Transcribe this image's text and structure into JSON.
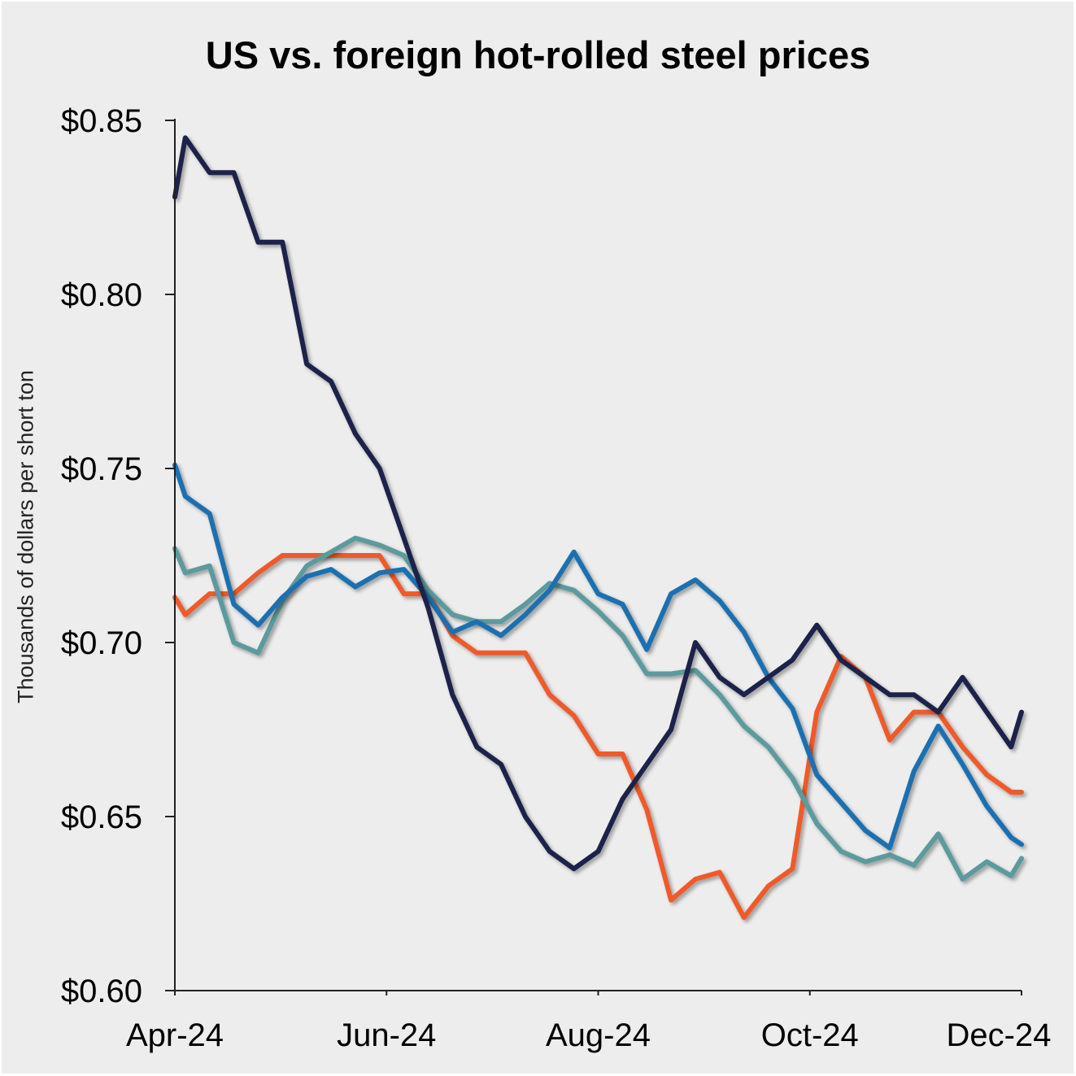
{
  "chart_data": {
    "type": "line",
    "title": "US vs. foreign hot-rolled steel prices",
    "xlabel": "",
    "ylabel": "Thousands of dollars per short ton",
    "y_tick_labels": [
      "$0.60",
      "$0.65",
      "$0.70",
      "$0.75",
      "$0.80",
      "$0.85"
    ],
    "y_ticks": [
      0.6,
      0.65,
      0.7,
      0.75,
      0.8,
      0.85
    ],
    "ylim": [
      0.6,
      0.85
    ],
    "x_tick_labels": [
      "Apr-24",
      "Jun-24",
      "Aug-24",
      "Oct-24",
      "Dec-24"
    ],
    "x_ticks": [
      "2024-04-01",
      "2024-06-01",
      "2024-08-01",
      "2024-10-01",
      "2024-12-01"
    ],
    "xlim": [
      "2024-04-01",
      "2024-12-01"
    ],
    "grid": false,
    "legend": "none",
    "series": [
      {
        "color": "#1b2049",
        "x": [
          "2024-04-01",
          "2024-04-04",
          "2024-04-11",
          "2024-04-18",
          "2024-04-25",
          "2024-05-02",
          "2024-05-09",
          "2024-05-16",
          "2024-05-23",
          "2024-05-30",
          "2024-06-06",
          "2024-06-13",
          "2024-06-20",
          "2024-06-27",
          "2024-07-04",
          "2024-07-11",
          "2024-07-18",
          "2024-07-25",
          "2024-08-01",
          "2024-08-08",
          "2024-08-15",
          "2024-08-22",
          "2024-08-29",
          "2024-09-05",
          "2024-09-12",
          "2024-09-19",
          "2024-09-26",
          "2024-10-03",
          "2024-10-10",
          "2024-10-17",
          "2024-10-24",
          "2024-10-31",
          "2024-11-07",
          "2024-11-14",
          "2024-11-21",
          "2024-11-28",
          "2024-12-01"
        ],
        "values": [
          0.828,
          0.845,
          0.835,
          0.835,
          0.815,
          0.815,
          0.78,
          0.775,
          0.76,
          0.75,
          0.73,
          0.71,
          0.685,
          0.67,
          0.665,
          0.65,
          0.64,
          0.635,
          0.64,
          0.655,
          0.665,
          0.675,
          0.7,
          0.69,
          0.685,
          0.69,
          0.695,
          0.705,
          0.695,
          0.69,
          0.685,
          0.685,
          0.68,
          0.69,
          0.68,
          0.67,
          0.68
        ]
      },
      {
        "color": "#1a70b0",
        "x": [
          "2024-04-01",
          "2024-04-04",
          "2024-04-11",
          "2024-04-18",
          "2024-04-25",
          "2024-05-02",
          "2024-05-09",
          "2024-05-16",
          "2024-05-23",
          "2024-05-30",
          "2024-06-06",
          "2024-06-13",
          "2024-06-20",
          "2024-06-27",
          "2024-07-04",
          "2024-07-11",
          "2024-07-18",
          "2024-07-25",
          "2024-08-01",
          "2024-08-08",
          "2024-08-15",
          "2024-08-22",
          "2024-08-29",
          "2024-09-05",
          "2024-09-12",
          "2024-09-19",
          "2024-09-26",
          "2024-10-03",
          "2024-10-10",
          "2024-10-17",
          "2024-10-24",
          "2024-10-31",
          "2024-11-07",
          "2024-11-14",
          "2024-11-21",
          "2024-11-28",
          "2024-12-01"
        ],
        "values": [
          0.751,
          0.742,
          0.737,
          0.711,
          0.705,
          0.713,
          0.719,
          0.721,
          0.716,
          0.72,
          0.721,
          0.713,
          0.703,
          0.706,
          0.702,
          0.708,
          0.715,
          0.726,
          0.714,
          0.711,
          0.698,
          0.714,
          0.718,
          0.712,
          0.703,
          0.69,
          0.681,
          0.662,
          0.654,
          0.646,
          0.641,
          0.663,
          0.676,
          0.665,
          0.653,
          0.644,
          0.642
        ]
      },
      {
        "color": "#5b9a9e",
        "x": [
          "2024-04-01",
          "2024-04-04",
          "2024-04-11",
          "2024-04-18",
          "2024-04-25",
          "2024-05-02",
          "2024-05-09",
          "2024-05-16",
          "2024-05-23",
          "2024-05-30",
          "2024-06-06",
          "2024-06-13",
          "2024-06-20",
          "2024-06-27",
          "2024-07-04",
          "2024-07-11",
          "2024-07-18",
          "2024-07-25",
          "2024-08-01",
          "2024-08-08",
          "2024-08-15",
          "2024-08-22",
          "2024-08-29",
          "2024-09-05",
          "2024-09-12",
          "2024-09-19",
          "2024-09-26",
          "2024-10-03",
          "2024-10-10",
          "2024-10-17",
          "2024-10-24",
          "2024-10-31",
          "2024-11-07",
          "2024-11-14",
          "2024-11-21",
          "2024-11-28",
          "2024-12-01"
        ],
        "values": [
          0.727,
          0.72,
          0.722,
          0.7,
          0.697,
          0.712,
          0.722,
          0.726,
          0.73,
          0.728,
          0.725,
          0.715,
          0.708,
          0.706,
          0.706,
          0.711,
          0.717,
          0.715,
          0.709,
          0.702,
          0.691,
          0.691,
          0.692,
          0.685,
          0.676,
          0.67,
          0.661,
          0.648,
          0.64,
          0.637,
          0.639,
          0.636,
          0.645,
          0.632,
          0.637,
          0.633,
          0.638
        ]
      },
      {
        "color": "#ef5a2b",
        "x": [
          "2024-04-01",
          "2024-04-04",
          "2024-04-11",
          "2024-04-18",
          "2024-04-25",
          "2024-05-02",
          "2024-05-09",
          "2024-05-16",
          "2024-05-23",
          "2024-05-30",
          "2024-06-06",
          "2024-06-13",
          "2024-06-20",
          "2024-06-27",
          "2024-07-04",
          "2024-07-11",
          "2024-07-18",
          "2024-07-25",
          "2024-08-01",
          "2024-08-08",
          "2024-08-15",
          "2024-08-22",
          "2024-08-29",
          "2024-09-05",
          "2024-09-12",
          "2024-09-19",
          "2024-09-26",
          "2024-10-03",
          "2024-10-10",
          "2024-10-17",
          "2024-10-24",
          "2024-10-31",
          "2024-11-07",
          "2024-11-14",
          "2024-11-21",
          "2024-11-28",
          "2024-12-01"
        ],
        "values": [
          0.713,
          0.708,
          0.714,
          0.714,
          0.72,
          0.725,
          0.725,
          0.725,
          0.725,
          0.725,
          0.714,
          0.714,
          0.702,
          0.697,
          0.697,
          0.697,
          0.685,
          0.679,
          0.668,
          0.668,
          0.652,
          0.626,
          0.632,
          0.634,
          0.621,
          0.63,
          0.635,
          0.68,
          0.696,
          0.69,
          0.672,
          0.68,
          0.68,
          0.67,
          0.662,
          0.657,
          0.657
        ]
      }
    ]
  }
}
